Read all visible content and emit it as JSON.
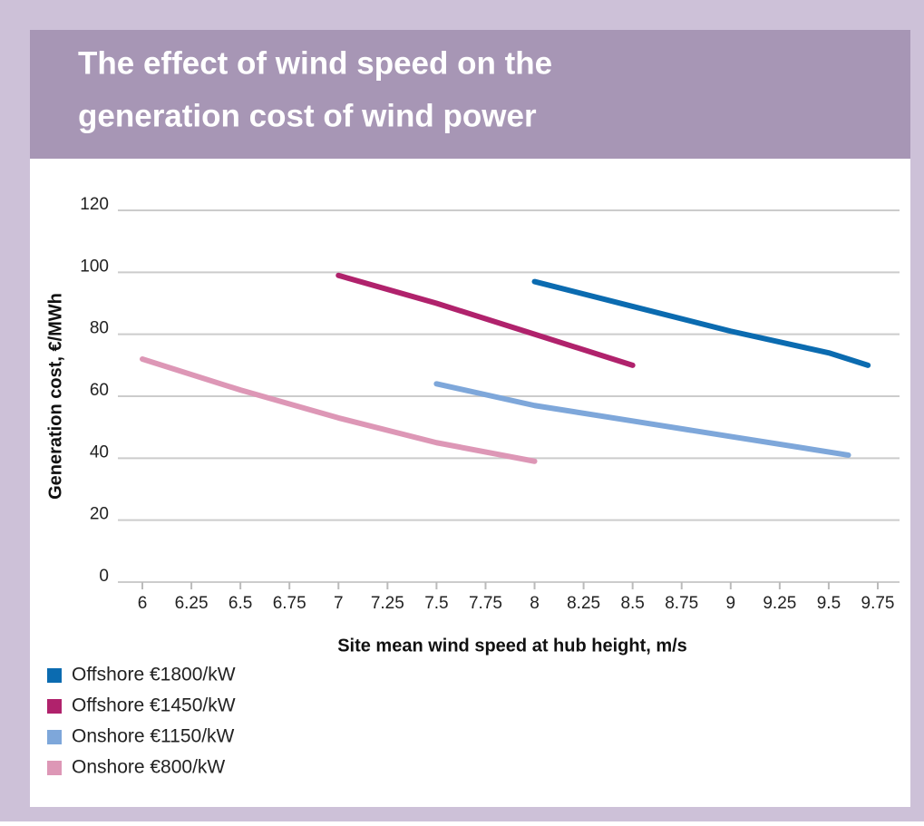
{
  "chart_data": {
    "type": "line",
    "title": [
      "The effect of wind speed on the",
      "generation cost of wind power"
    ],
    "x_label": "Site mean wind speed at hub height, m/s",
    "y_label": "Generation cost, €/MWh",
    "xlim": [
      6,
      9.75
    ],
    "xticks": [
      6,
      6.25,
      6.5,
      6.75,
      7,
      7.25,
      7.5,
      7.75,
      8,
      8.25,
      8.5,
      8.75,
      9,
      9.25,
      9.5,
      9.75
    ],
    "ylim": [
      0,
      120
    ],
    "yticks": [
      0,
      20,
      40,
      60,
      80,
      100,
      120
    ],
    "grid": true,
    "legend": "bottom-left",
    "series": [
      {
        "name": "Offshore €1800/kW",
        "color": "#0b6bb0",
        "x": [
          8,
          8.5,
          9,
          9.5,
          9.7
        ],
        "values": [
          97,
          89,
          81,
          74,
          70
        ]
      },
      {
        "name": "Offshore €1450/kW",
        "color": "#b0226c",
        "x": [
          7,
          7.5,
          8,
          8.5
        ],
        "values": [
          99,
          90,
          80,
          70
        ]
      },
      {
        "name": "Onshore €1150/kW",
        "color": "#7ea7da",
        "x": [
          7.5,
          8,
          8.5,
          9,
          9.6
        ],
        "values": [
          64,
          57,
          52,
          47,
          41
        ]
      },
      {
        "name": "Onshore €800/kW",
        "color": "#dd97b6",
        "x": [
          6,
          6.5,
          7,
          7.5,
          8
        ],
        "values": [
          72,
          62,
          53,
          45,
          39
        ]
      }
    ]
  }
}
